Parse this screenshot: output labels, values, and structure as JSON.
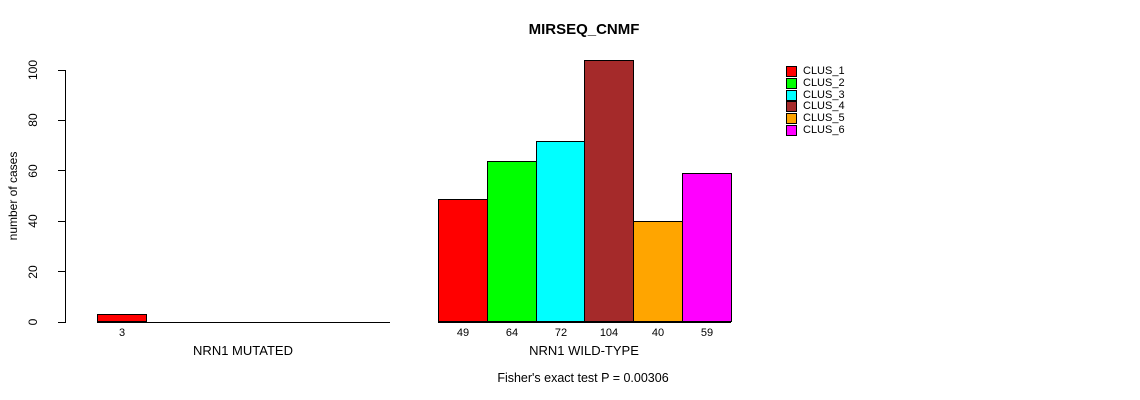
{
  "chart_data": {
    "type": "bar",
    "title": "MIRSEQ_CNMF",
    "ylabel": "number of cases",
    "xlabel": "",
    "ylim": [
      0,
      100
    ],
    "y_ticks": [
      0,
      20,
      40,
      60,
      80,
      100
    ],
    "grid": false,
    "legend_position": "right",
    "legend": [
      {
        "label": "CLUS_1",
        "color": "#ff0000"
      },
      {
        "label": "CLUS_2",
        "color": "#00ff00"
      },
      {
        "label": "CLUS_3",
        "color": "#00ffff"
      },
      {
        "label": "CLUS_4",
        "color": "#a52a2a"
      },
      {
        "label": "CLUS_5",
        "color": "#ffa500"
      },
      {
        "label": "CLUS_6",
        "color": "#ff00ff"
      }
    ],
    "groups": [
      {
        "label": "NRN1 MUTATED",
        "values": [
          3,
          0,
          0,
          0,
          0,
          0
        ],
        "bar_labels": [
          "3",
          "",
          "",
          "",
          "",
          ""
        ]
      },
      {
        "label": "NRN1 WILD-TYPE",
        "values": [
          49,
          64,
          72,
          104,
          40,
          59
        ],
        "bar_labels": [
          "49",
          "64",
          "72",
          "104",
          "40",
          "59"
        ]
      }
    ],
    "annotation": "Fisher's exact test P = 0.00306"
  }
}
